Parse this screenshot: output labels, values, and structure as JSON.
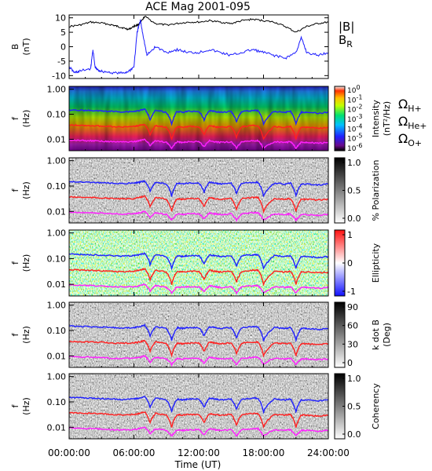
{
  "chart_data": {
    "type": "multi-panel spectrogram",
    "title": "ACE Mag 2001-095",
    "xlabel": "Time (UT)",
    "x_ticks": [
      "00:00:00",
      "06:00:00",
      "12:00:00",
      "18:00:00",
      "24:00:00"
    ],
    "xlim_hours": [
      0,
      24
    ],
    "panels": [
      {
        "id": "B",
        "type": "line",
        "ylabel_line1": "B",
        "ylabel_line2": "(nT)",
        "ylim": [
          -11,
          11
        ],
        "y_ticks": [
          "10",
          "5",
          "0",
          "-5",
          "-10"
        ],
        "y_tick_values": [
          10,
          5,
          0,
          -5,
          -10
        ],
        "series": [
          {
            "name": "|B|",
            "color": "#000000",
            "x": [
              0,
              1,
              2,
              3,
              4,
              4.5,
              5,
              5.5,
              6,
              6.3,
              6.6,
              7,
              8,
              9,
              10,
              11,
              12,
              13,
              14,
              15,
              16,
              17,
              18,
              19,
              20,
              21,
              22,
              23,
              24
            ],
            "y": [
              7,
              7.5,
              8.5,
              8.2,
              7.5,
              7,
              6.5,
              6,
              7,
              7.5,
              8.2,
              10.5,
              8,
              7.5,
              8,
              8.5,
              8.5,
              9,
              8.5,
              8,
              9,
              9.5,
              9,
              8.5,
              7,
              5,
              7,
              8,
              8.5
            ]
          },
          {
            "name": "B_R",
            "color": "#1a1aff",
            "x": [
              0,
              0.5,
              1,
              2,
              2.2,
              2.4,
              2.6,
              3,
              4,
              5,
              5.5,
              6,
              6.3,
              6.6,
              6.9,
              7.2,
              8,
              9,
              10,
              11,
              12,
              13,
              14,
              15,
              16,
              17,
              18,
              19,
              20,
              21,
              21.5,
              22,
              23,
              24
            ],
            "y": [
              -7,
              -9,
              -8.5,
              -7.5,
              -1,
              -7,
              -8,
              -8.5,
              -9,
              -9.2,
              -8.5,
              -7,
              5,
              9,
              3,
              -3,
              0,
              -2,
              -1,
              -2,
              -2,
              -1,
              -2,
              -3,
              -2,
              -1,
              -2,
              -3,
              -4,
              -2,
              3,
              -2,
              -3,
              -2
            ]
          }
        ]
      },
      {
        "id": "intensity",
        "type": "heatmap",
        "ylabel_line1": "f",
        "ylabel_line2": "(Hz)",
        "y_ticks": [
          "1.00",
          "0.10",
          "0.01"
        ],
        "y_tick_values": [
          1.0,
          0.1,
          0.01
        ],
        "ylim_log": [
          0.0035,
          1.3
        ],
        "colorbar": {
          "scale": "rainbow",
          "label_line1": "Intensity",
          "label_line2": "(nT²/Hz)",
          "tick_mantissa": "10",
          "tick_exponents": [
            "0",
            "-1",
            "-2",
            "-3",
            "-4",
            "-5",
            "-6"
          ]
        }
      },
      {
        "id": "polarization",
        "type": "heatmap",
        "ylabel_line1": "f",
        "ylabel_line2": "(Hz)",
        "y_ticks": [
          "1.00",
          "0.10",
          "0.01"
        ],
        "y_tick_values": [
          1.0,
          0.1,
          0.01
        ],
        "ylim_log": [
          0.0035,
          1.3
        ],
        "colorbar": {
          "scale": "gray",
          "label_line1": "% Polarization",
          "label_line2": "",
          "ticks": [
            "1.0",
            "0.5",
            "0.0"
          ]
        }
      },
      {
        "id": "ellipticity",
        "type": "heatmap",
        "ylabel_line1": "f",
        "ylabel_line2": "(Hz)",
        "y_ticks": [
          "1.00",
          "0.10",
          "0.01"
        ],
        "y_tick_values": [
          1.0,
          0.1,
          0.01
        ],
        "ylim_log": [
          0.0035,
          1.3
        ],
        "colorbar": {
          "scale": "bwr",
          "label_line1": "Ellipticity",
          "label_line2": "",
          "ticks": [
            "1",
            "0",
            "-1"
          ]
        }
      },
      {
        "id": "kdotb",
        "type": "heatmap",
        "ylabel_line1": "f",
        "ylabel_line2": "(Hz)",
        "y_ticks": [
          "1.00",
          "0.10",
          "0.01"
        ],
        "y_tick_values": [
          1.0,
          0.1,
          0.01
        ],
        "ylim_log": [
          0.0035,
          1.3
        ],
        "colorbar": {
          "scale": "gray",
          "label_line1": "k dot B",
          "label_line2": "(Deg)",
          "ticks": [
            "90",
            "60",
            "30",
            "0"
          ]
        }
      },
      {
        "id": "coherency",
        "type": "heatmap",
        "ylabel_line1": "f",
        "ylabel_line2": "(Hz)",
        "y_ticks": [
          "1.00",
          "0.10",
          "0.01"
        ],
        "y_tick_values": [
          1.0,
          0.1,
          0.01
        ],
        "ylim_log": [
          0.0035,
          1.3
        ],
        "colorbar": {
          "scale": "gray",
          "label_line1": "Coherency",
          "label_line2": "",
          "ticks": [
            "1.0",
            "0.5",
            "0.0"
          ]
        }
      }
    ],
    "gyro_lines": {
      "x": [
        0,
        1,
        2,
        3,
        4,
        5,
        6,
        6.5,
        7,
        7.5,
        8,
        9,
        9.5,
        10,
        10.5,
        11,
        12,
        12.5,
        13,
        13.5,
        14,
        15,
        15.5,
        16,
        17,
        17.5,
        18,
        19,
        20,
        20.5,
        21,
        21.5,
        22,
        23,
        24
      ],
      "H+": [
        0.15,
        0.145,
        0.14,
        0.135,
        0.13,
        0.125,
        0.13,
        0.14,
        0.16,
        0.06,
        0.14,
        0.12,
        0.04,
        0.13,
        0.12,
        0.13,
        0.13,
        0.06,
        0.14,
        0.13,
        0.12,
        0.13,
        0.05,
        0.13,
        0.14,
        0.14,
        0.04,
        0.13,
        0.12,
        0.13,
        0.04,
        0.12,
        0.12,
        0.11,
        0.12
      ],
      "He+": [
        0.037,
        0.036,
        0.035,
        0.034,
        0.032,
        0.031,
        0.032,
        0.035,
        0.04,
        0.015,
        0.035,
        0.03,
        0.01,
        0.032,
        0.03,
        0.032,
        0.032,
        0.015,
        0.035,
        0.032,
        0.03,
        0.032,
        0.012,
        0.032,
        0.035,
        0.035,
        0.01,
        0.032,
        0.03,
        0.032,
        0.01,
        0.03,
        0.03,
        0.028,
        0.03
      ],
      "O+": [
        0.0094,
        0.009,
        0.0088,
        0.0085,
        0.008,
        0.0078,
        0.008,
        0.0088,
        0.01,
        0.0055,
        0.0088,
        0.0075,
        0.0045,
        0.008,
        0.0075,
        0.008,
        0.008,
        0.005,
        0.0088,
        0.008,
        0.0075,
        0.008,
        0.0045,
        0.008,
        0.0088,
        0.0088,
        0.0045,
        0.008,
        0.0075,
        0.008,
        0.0045,
        0.0075,
        0.0075,
        0.007,
        0.0075
      ],
      "colors": {
        "H+": "#2020ff",
        "He+": "#ff2020",
        "O+": "#ff20ff"
      }
    },
    "legend": {
      "B_items": [
        {
          "text": "|B|",
          "sub": "",
          "color": "#000000"
        },
        {
          "text": "B",
          "sub": "R",
          "color": "#1a1aff"
        }
      ],
      "omega_items": [
        {
          "text": "Ω",
          "sub": "H+",
          "color": "#2020ff"
        },
        {
          "text": "Ω",
          "sub": "He+",
          "color": "#ff2020"
        },
        {
          "text": "Ω",
          "sub": "O+",
          "color": "#ff20ff"
        }
      ]
    }
  }
}
